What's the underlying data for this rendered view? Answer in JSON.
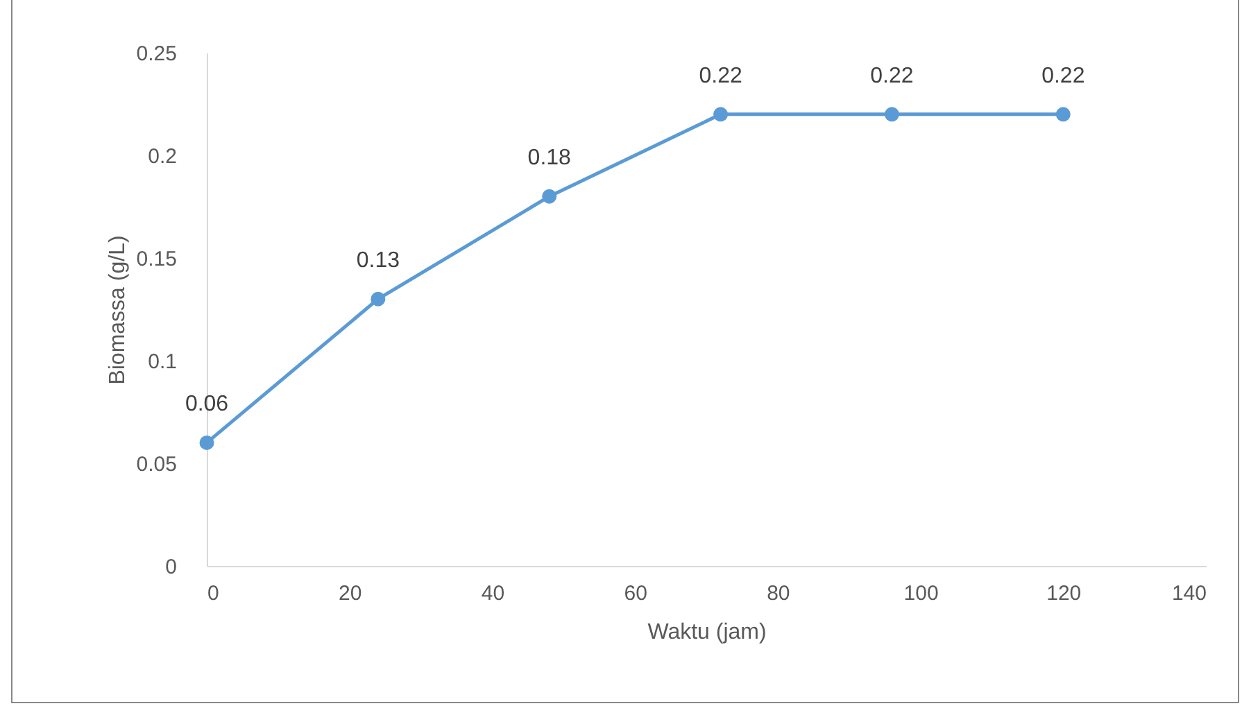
{
  "chart_data": {
    "type": "line",
    "xlabel": "Waktu (jam)",
    "ylabel": "Biomassa (g/L)",
    "x": [
      0,
      24,
      48,
      72,
      96,
      120
    ],
    "series": [
      {
        "color": "#5b9bd5",
        "values": [
          0.06,
          0.13,
          0.18,
          0.22,
          0.22,
          0.22
        ]
      }
    ],
    "xlim": [
      0,
      140
    ],
    "xticks": [
      0,
      20,
      40,
      60,
      80,
      100,
      120,
      140
    ],
    "ylim": [
      0,
      0.25
    ],
    "yticks": [
      0,
      0.05,
      0.1,
      0.15,
      0.2,
      0.25
    ],
    "grid": false,
    "legend": false,
    "marker": "circle",
    "line_style": "solid",
    "data_labels": true
  }
}
